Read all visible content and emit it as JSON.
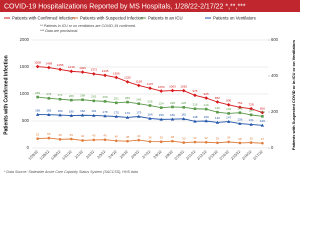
{
  "chart_data": {
    "type": "line",
    "title": "COVID-19 Hospitalizations Reported by MS Hospitals, 1/28/22-2/17/22 *,**,***",
    "notes": [
      "** Patients in ICU or on ventilators are COVID-19 confirmed.",
      "*** Data are provisional."
    ],
    "source": "* Data Source: Statewide Acute Care Capacity Status System (SACCSS), HHS data",
    "ylabel": "Patients with Confirmed Infection",
    "y2label": "Patients with Suspected COVID or in ICU or on Ventilators",
    "categories": [
      "1/28/22",
      "1/29/22",
      "1/30/22",
      "1/31/22",
      "2/1/22",
      "2/2/22",
      "2/3/22",
      "2/4/22",
      "2/5/22",
      "2/6/22",
      "2/7/22",
      "2/8/22",
      "2/9/22",
      "2/10/22",
      "2/11/22",
      "2/12/22",
      "2/13/22",
      "2/14/22",
      "2/15/22",
      "2/16/22",
      "2/17/22"
    ],
    "ylim": [
      0,
      2000
    ],
    "yticks": [
      0,
      500,
      1000,
      1500,
      2000
    ],
    "y2lim": [
      0,
      600
    ],
    "y2ticks": [
      0,
      200,
      400,
      600
    ],
    "grid": true,
    "series": [
      {
        "name": "Patients with Confirmed Infection",
        "color": "#d7191c",
        "marker": "diamond",
        "values": [
          1508,
          1489,
          1455,
          1419,
          1406,
          1372,
          1345,
          1306,
          1225,
          1158,
          1107,
          1054,
          1063,
          1062,
          976,
          925,
          852,
          800,
          754,
          728,
          656
        ]
      },
      {
        "name": "Patients with Suspected Infection",
        "color": "#e07b39",
        "marker": "circle",
        "axis": "y2",
        "values": [
          52,
          55,
          48,
          50,
          42,
          45,
          46,
          40,
          38,
          44,
          36,
          35,
          38,
          30,
          33,
          32,
          29,
          34,
          28,
          30,
          27
        ]
      },
      {
        "name": "Patients in an ICU",
        "color": "#5a9a4a",
        "marker": "square",
        "axis": "y2",
        "values": [
          283,
          276,
          271,
          266,
          268,
          262,
          259,
          251,
          255,
          246,
          236,
          224,
          228,
          226,
          218,
          216,
          199,
          192,
          196,
          184,
          176
        ]
      },
      {
        "name": "Patients on Ventilators",
        "color": "#2255aa",
        "marker": "triangle",
        "axis": "y2",
        "values": [
          186,
          185,
          183,
          180,
          182,
          181,
          178,
          175,
          170,
          175,
          164,
          159,
          160,
          162,
          148,
          150,
          142,
          147,
          136,
          131,
          126
        ]
      }
    ]
  }
}
